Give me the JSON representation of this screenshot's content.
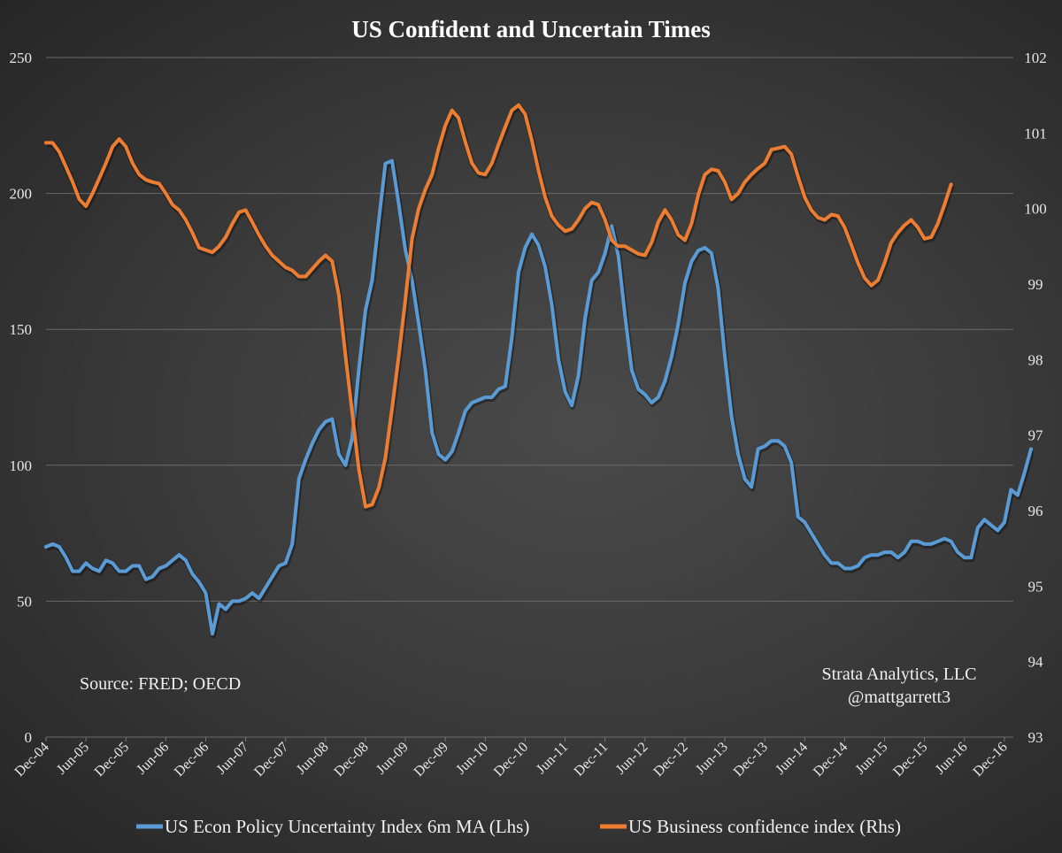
{
  "chart_data": {
    "type": "line",
    "title": "US Confident and Uncertain Times",
    "xlabel": "",
    "ylabel_left": "",
    "ylabel_right": "",
    "y_left_lim": [
      0,
      250
    ],
    "y_right_lim": [
      93,
      102
    ],
    "y_left_ticks": [
      "0",
      "50",
      "100",
      "150",
      "200",
      "250"
    ],
    "y_right_ticks": [
      "93",
      "94",
      "95",
      "96",
      "97",
      "98",
      "99",
      "100",
      "101",
      "102"
    ],
    "x_start": "Dec-04",
    "x_tick_labels": [
      "Dec-04",
      "Jun-05",
      "Dec-05",
      "Jun-06",
      "Dec-06",
      "Jun-07",
      "Dec-07",
      "Jun-08",
      "Dec-08",
      "Jun-09",
      "Dec-09",
      "Jun-10",
      "Dec-10",
      "Jun-11",
      "Dec-11",
      "Jun-12",
      "Dec-12",
      "Jun-13",
      "Dec-13",
      "Jun-14",
      "Dec-14",
      "Jun-15",
      "Dec-15",
      "Jun-16",
      "Dec-16"
    ],
    "grid": true,
    "legend_position": "bottom",
    "annotations": [
      "Source: FRED; OECD",
      "Strata Analytics, LLC",
      "@mattgarrett3"
    ],
    "series": [
      {
        "name": "US Econ Policy Uncertainty Index 6m MA (Lhs)",
        "axis": "left",
        "color": "#5b9bd5",
        "values": [
          70,
          71,
          70,
          66,
          61,
          61,
          64,
          62,
          61,
          65,
          64,
          61,
          61,
          63,
          63,
          58,
          59,
          62,
          63,
          65,
          67,
          65,
          60,
          57,
          53,
          38,
          49,
          47,
          50,
          50,
          51,
          53,
          51,
          55,
          59,
          63,
          64,
          71,
          95,
          102,
          108,
          113,
          116,
          117,
          104,
          100,
          110,
          135,
          157,
          168,
          190,
          211,
          212,
          196,
          179,
          168,
          152,
          135,
          112,
          104,
          102,
          105,
          112,
          120,
          123,
          124,
          125,
          125,
          128,
          129,
          147,
          171,
          180,
          185,
          181,
          173,
          159,
          139,
          127,
          122,
          133,
          154,
          168,
          171,
          178,
          188,
          177,
          155,
          135,
          128,
          126,
          123,
          125,
          131,
          140,
          152,
          167,
          175,
          179,
          180,
          178,
          165,
          140,
          118,
          104,
          95,
          92,
          106,
          107,
          109,
          109,
          107,
          101,
          81,
          79,
          75,
          71,
          67,
          64,
          64,
          62,
          62,
          63,
          66,
          67,
          67,
          68,
          68,
          66,
          68,
          72,
          72,
          71,
          71,
          72,
          73,
          72,
          68,
          66,
          66,
          77,
          80,
          78,
          76,
          79,
          91,
          89,
          97,
          106
        ]
      },
      {
        "name": "US Business confidence index (Rhs)",
        "axis": "right",
        "color": "#ed7d31",
        "values": [
          100.87,
          100.87,
          100.75,
          100.55,
          100.35,
          100.12,
          100.03,
          100.2,
          100.4,
          100.6,
          100.82,
          100.92,
          100.82,
          100.6,
          100.45,
          100.38,
          100.35,
          100.33,
          100.2,
          100.05,
          99.98,
          99.85,
          99.68,
          99.48,
          99.45,
          99.42,
          99.5,
          99.62,
          99.8,
          99.95,
          99.98,
          99.82,
          99.65,
          99.5,
          99.38,
          99.3,
          99.22,
          99.18,
          99.1,
          99.1,
          99.2,
          99.3,
          99.38,
          99.3,
          98.85,
          98.05,
          97.3,
          96.55,
          96.05,
          96.08,
          96.3,
          96.7,
          97.35,
          98.05,
          98.8,
          99.6,
          100.0,
          100.25,
          100.45,
          100.8,
          101.1,
          101.3,
          101.2,
          100.88,
          100.6,
          100.47,
          100.45,
          100.6,
          100.85,
          101.08,
          101.3,
          101.37,
          101.25,
          100.9,
          100.5,
          100.15,
          99.9,
          99.78,
          99.7,
          99.73,
          99.85,
          100.0,
          100.08,
          100.05,
          99.85,
          99.58,
          99.5,
          99.5,
          99.45,
          99.4,
          99.38,
          99.55,
          99.82,
          99.98,
          99.85,
          99.65,
          99.58,
          99.8,
          100.18,
          100.45,
          100.52,
          100.5,
          100.35,
          100.12,
          100.2,
          100.35,
          100.45,
          100.53,
          100.6,
          100.78,
          100.8,
          100.82,
          100.72,
          100.42,
          100.15,
          99.98,
          99.88,
          99.85,
          99.92,
          99.9,
          99.75,
          99.52,
          99.28,
          99.08,
          98.98,
          99.05,
          99.28,
          99.55,
          99.68,
          99.78,
          99.85,
          99.75,
          99.6,
          99.62,
          99.8,
          100.05,
          100.32
        ]
      }
    ]
  }
}
